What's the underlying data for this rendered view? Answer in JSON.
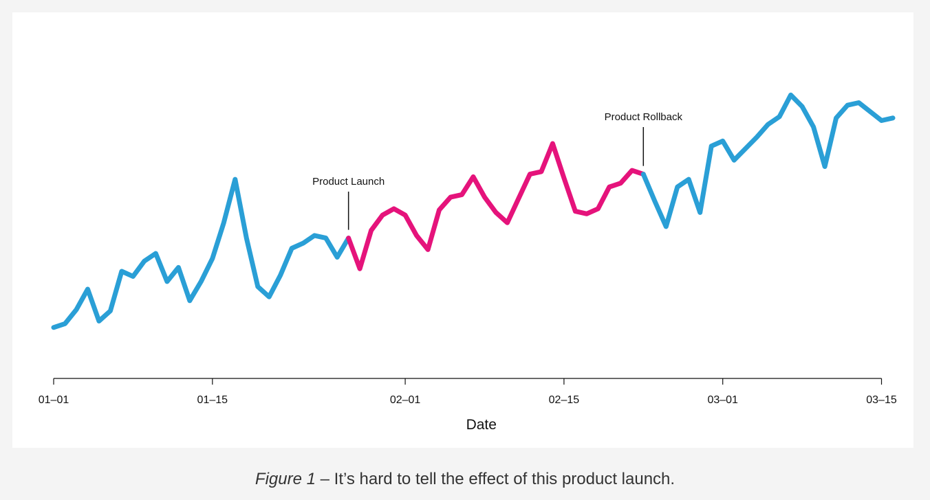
{
  "colors": {
    "background": "#f4f4f4",
    "chart_bg": "#ffffff",
    "baseline": "#2a9fd6",
    "treatment": "#e5137b",
    "axis": "#111111"
  },
  "caption": {
    "figure": "Figure 1",
    "text": " – It’s hard to tell the effect of this product launch."
  },
  "chart_data": {
    "type": "line",
    "xlabel": "Date",
    "ylabel": "",
    "x_ticks": [
      "01-01",
      "01-15",
      "02-01",
      "02-15",
      "03-01",
      "03-15"
    ],
    "x_tick_labels": [
      "01–01",
      "01–15",
      "02–01",
      "02–15",
      "03–01",
      "03–15"
    ],
    "x_range": [
      "01-01",
      "03-16"
    ],
    "y_axis_shown": false,
    "grid": false,
    "annotations": [
      {
        "label": "Product Launch",
        "x": "01-27"
      },
      {
        "label": "Product Rollback",
        "x": "02-22"
      }
    ],
    "series": [
      {
        "segment": "before-launch",
        "color": "#2a9fd6",
        "x": [
          "01-01",
          "01-02",
          "01-03",
          "01-04",
          "01-05",
          "01-06",
          "01-07",
          "01-08",
          "01-09",
          "01-10",
          "01-11",
          "01-12",
          "01-13",
          "01-14",
          "01-15",
          "01-16",
          "01-17",
          "01-18",
          "01-19",
          "01-20",
          "01-21",
          "01-22",
          "01-23",
          "01-24",
          "01-25",
          "01-26",
          "01-27"
        ],
        "values": [
          6,
          9,
          20,
          36,
          11,
          19,
          50,
          46,
          58,
          64,
          42,
          53,
          27,
          42,
          60,
          88,
          122,
          76,
          38,
          30,
          47,
          68,
          72,
          78,
          76,
          61,
          76
        ]
      },
      {
        "segment": "launch-period",
        "color": "#e5137b",
        "x": [
          "01-27",
          "01-28",
          "01-29",
          "01-30",
          "01-31",
          "02-01",
          "02-02",
          "02-03",
          "02-04",
          "02-05",
          "02-06",
          "02-07",
          "02-08",
          "02-09",
          "02-10",
          "02-11",
          "02-12",
          "02-13",
          "02-14",
          "02-15",
          "02-16",
          "02-17",
          "02-18",
          "02-19",
          "02-20",
          "02-21",
          "02-22"
        ],
        "values": [
          76,
          52,
          82,
          94,
          99,
          94,
          78,
          67,
          98,
          108,
          110,
          124,
          108,
          96,
          88,
          107,
          126,
          128,
          150,
          123,
          97,
          95,
          99,
          116,
          119,
          129,
          126
        ]
      },
      {
        "segment": "after-rollback",
        "color": "#2a9fd6",
        "x": [
          "02-22",
          "02-23",
          "02-24",
          "02-25",
          "02-26",
          "02-27",
          "02-28",
          "03-01",
          "03-02",
          "03-03",
          "03-04",
          "03-05",
          "03-06",
          "03-07",
          "03-08",
          "03-09",
          "03-10",
          "03-11",
          "03-12",
          "03-13",
          "03-14",
          "03-15",
          "03-16"
        ],
        "values": [
          126,
          105,
          85,
          116,
          122,
          96,
          148,
          152,
          137,
          146,
          155,
          165,
          171,
          188,
          179,
          163,
          132,
          170,
          180,
          182,
          175,
          168,
          170
        ]
      }
    ]
  }
}
